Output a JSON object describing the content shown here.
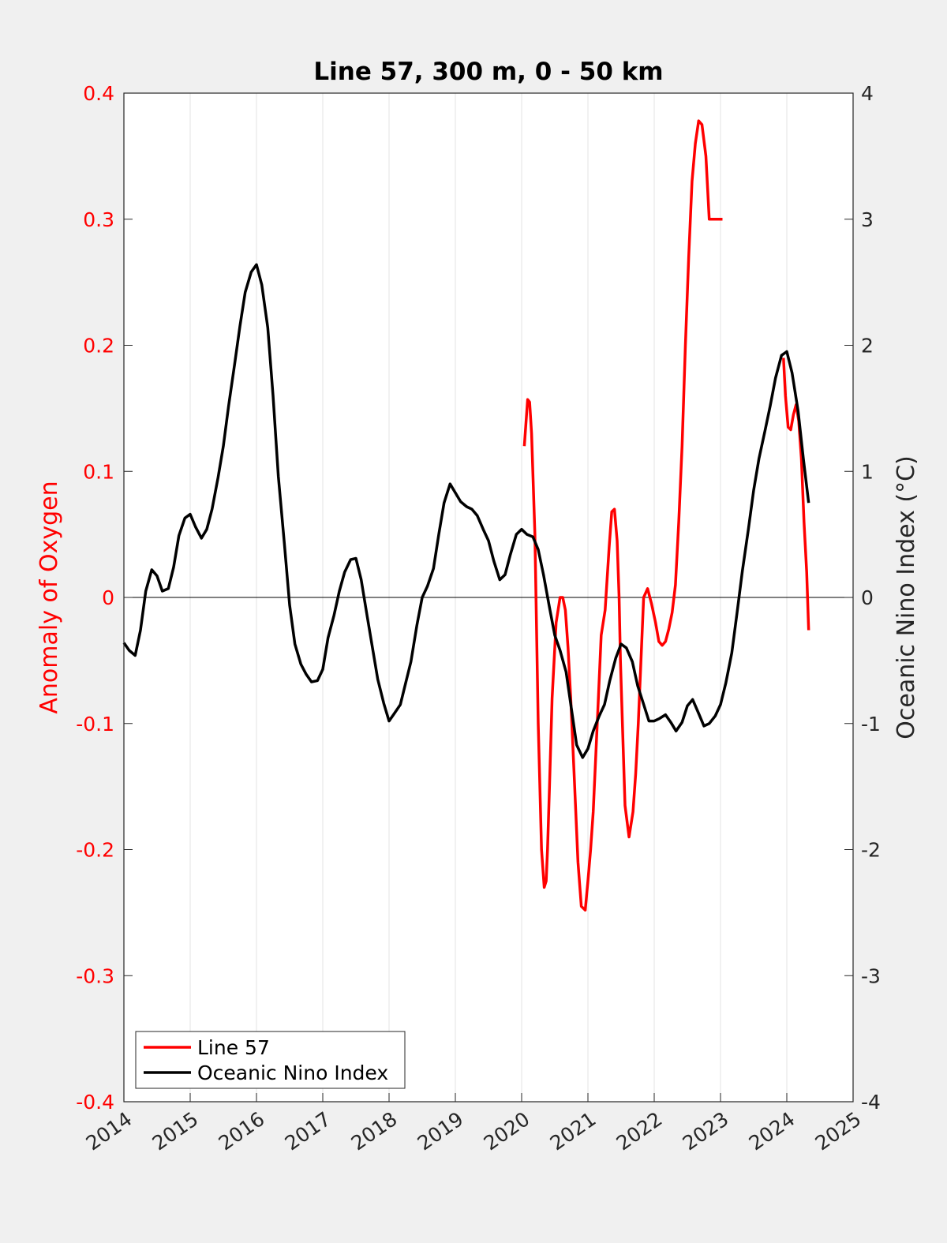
{
  "chart_data": {
    "type": "line",
    "title": "Line 57, 300 m, 0 - 50 km",
    "xlabel": "",
    "ylabel_left": "Anomaly of Oxygen",
    "ylabel_right": "Oceanic Nino Index (°C)",
    "xlim": [
      2014,
      2025
    ],
    "ylim_left": [
      -0.4,
      0.4
    ],
    "ylim_right": [
      -4,
      4
    ],
    "x_ticks": [
      "2014",
      "2015",
      "2016",
      "2017",
      "2018",
      "2019",
      "2020",
      "2021",
      "2022",
      "2023",
      "2024",
      "2025"
    ],
    "y_ticks_left": [
      "-0.4",
      "-0.3",
      "-0.2",
      "-0.1",
      "0",
      "0.1",
      "0.2",
      "0.3",
      "0.4"
    ],
    "y_ticks_right": [
      "-4",
      "-3",
      "-2",
      "-1",
      "0",
      "1",
      "2",
      "3",
      "4"
    ],
    "grid": "vertical",
    "zero_line": true,
    "legend": {
      "placement": "bottom-left",
      "entries": [
        "Line 57",
        "Oceanic Nino Index"
      ]
    },
    "colors": {
      "line57": "#ff0000",
      "oni": "#000000"
    },
    "series": [
      {
        "name": "Line 57",
        "axis": "left",
        "color": "#ff0000",
        "segments": [
          {
            "x": [
              2020.04,
              2020.09,
              2020.12,
              2020.15,
              2020.2,
              2020.25,
              2020.3,
              2020.34,
              2020.37,
              2020.39,
              2020.42,
              2020.46,
              2020.52,
              2020.58,
              2020.62,
              2020.66,
              2020.7,
              2020.74,
              2020.8,
              2020.85,
              2020.9,
              2020.96,
              2021.0,
              2021.04,
              2021.08,
              2021.14,
              2021.2,
              2021.26,
              2021.32,
              2021.36,
              2021.4,
              2021.44,
              2021.47,
              2021.49,
              2021.52,
              2021.56,
              2021.62,
              2021.68,
              2021.72,
              2021.76,
              2021.8,
              2021.84,
              2021.9,
              2021.96,
              2022.02,
              2022.07,
              2022.12,
              2022.17,
              2022.22,
              2022.27,
              2022.32,
              2022.37,
              2022.42,
              2022.47,
              2022.52,
              2022.57,
              2022.62,
              2022.67,
              2022.72,
              2022.78,
              2022.83,
              2022.88,
              2022.93,
              2022.96,
              2022.99,
              2023.03
            ],
            "y": [
              0.12,
              0.157,
              0.155,
              0.13,
              0.05,
              -0.1,
              -0.2,
              -0.23,
              -0.225,
              -0.2,
              -0.15,
              -0.08,
              -0.02,
              0.0,
              0.0,
              -0.01,
              -0.04,
              -0.08,
              -0.15,
              -0.21,
              -0.245,
              -0.248,
              -0.225,
              -0.2,
              -0.17,
              -0.1,
              -0.03,
              -0.01,
              0.04,
              0.068,
              0.07,
              0.045,
              0.0,
              -0.05,
              -0.1,
              -0.165,
              -0.19,
              -0.17,
              -0.14,
              -0.1,
              -0.05,
              0.0,
              0.007,
              -0.005,
              -0.02,
              -0.035,
              -0.038,
              -0.035,
              -0.025,
              -0.012,
              0.01,
              0.06,
              0.12,
              0.2,
              0.27,
              0.33,
              0.36,
              0.378,
              0.375,
              0.35,
              0.3,
              0.3,
              0.3,
              0.3,
              0.3,
              0.3
            ]
          },
          {
            "x": [
              2023.95,
              2023.98,
              2024.02,
              2024.06,
              2024.1,
              2024.14,
              2024.18,
              2024.22,
              2024.26,
              2024.3,
              2024.33
            ],
            "y": [
              0.19,
              0.16,
              0.135,
              0.133,
              0.145,
              0.153,
              0.14,
              0.11,
              0.06,
              0.02,
              -0.026
            ]
          }
        ]
      },
      {
        "name": "Oceanic Nino Index",
        "axis": "right",
        "color": "#000000",
        "x": [
          2014.0,
          2014.08,
          2014.17,
          2014.25,
          2014.33,
          2014.42,
          2014.5,
          2014.58,
          2014.67,
          2014.75,
          2014.83,
          2014.92,
          2015.0,
          2015.08,
          2015.17,
          2015.25,
          2015.33,
          2015.42,
          2015.5,
          2015.58,
          2015.67,
          2015.75,
          2015.83,
          2015.92,
          2016.0,
          2016.08,
          2016.17,
          2016.25,
          2016.33,
          2016.42,
          2016.5,
          2016.58,
          2016.67,
          2016.75,
          2016.83,
          2016.92,
          2017.0,
          2017.08,
          2017.17,
          2017.25,
          2017.33,
          2017.42,
          2017.5,
          2017.58,
          2017.67,
          2017.75,
          2017.83,
          2017.92,
          2018.0,
          2018.08,
          2018.17,
          2018.25,
          2018.33,
          2018.42,
          2018.5,
          2018.58,
          2018.67,
          2018.75,
          2018.83,
          2018.92,
          2019.0,
          2019.08,
          2019.17,
          2019.25,
          2019.33,
          2019.42,
          2019.5,
          2019.58,
          2019.67,
          2019.75,
          2019.83,
          2019.92,
          2020.0,
          2020.08,
          2020.17,
          2020.25,
          2020.33,
          2020.42,
          2020.5,
          2020.58,
          2020.67,
          2020.75,
          2020.83,
          2020.92,
          2021.0,
          2021.08,
          2021.17,
          2021.25,
          2021.33,
          2021.42,
          2021.5,
          2021.58,
          2021.67,
          2021.75,
          2021.83,
          2021.92,
          2022.0,
          2022.08,
          2022.17,
          2022.25,
          2022.33,
          2022.42,
          2022.5,
          2022.58,
          2022.67,
          2022.75,
          2022.83,
          2022.92,
          2023.0,
          2023.08,
          2023.17,
          2023.25,
          2023.33,
          2023.42,
          2023.5,
          2023.58,
          2023.67,
          2023.75,
          2023.83,
          2023.92,
          2024.0,
          2024.08,
          2024.17,
          2024.25,
          2024.33
        ],
        "y": [
          -0.36,
          -0.42,
          -0.46,
          -0.26,
          0.05,
          0.22,
          0.17,
          0.05,
          0.07,
          0.24,
          0.49,
          0.63,
          0.66,
          0.56,
          0.47,
          0.54,
          0.7,
          0.95,
          1.2,
          1.52,
          1.85,
          2.15,
          2.42,
          2.58,
          2.64,
          2.48,
          2.14,
          1.6,
          0.96,
          0.43,
          -0.06,
          -0.37,
          -0.53,
          -0.61,
          -0.67,
          -0.66,
          -0.57,
          -0.32,
          -0.14,
          0.05,
          0.2,
          0.3,
          0.31,
          0.14,
          -0.15,
          -0.4,
          -0.65,
          -0.84,
          -0.98,
          -0.92,
          -0.85,
          -0.68,
          -0.51,
          -0.22,
          0.0,
          0.09,
          0.23,
          0.5,
          0.75,
          0.9,
          0.83,
          0.76,
          0.72,
          0.7,
          0.65,
          0.54,
          0.45,
          0.29,
          0.14,
          0.18,
          0.34,
          0.5,
          0.54,
          0.5,
          0.48,
          0.38,
          0.18,
          -0.08,
          -0.3,
          -0.42,
          -0.59,
          -0.88,
          -1.17,
          -1.27,
          -1.2,
          -1.06,
          -0.94,
          -0.85,
          -0.66,
          -0.48,
          -0.37,
          -0.4,
          -0.51,
          -0.7,
          -0.83,
          -0.98,
          -0.98,
          -0.96,
          -0.93,
          -0.99,
          -1.06,
          -0.99,
          -0.86,
          -0.81,
          -0.92,
          -1.02,
          -1.0,
          -0.94,
          -0.85,
          -0.68,
          -0.44,
          -0.12,
          0.21,
          0.54,
          0.85,
          1.1,
          1.32,
          1.52,
          1.74,
          1.92,
          1.95,
          1.78,
          1.48,
          1.1,
          0.75
        ]
      }
    ]
  }
}
